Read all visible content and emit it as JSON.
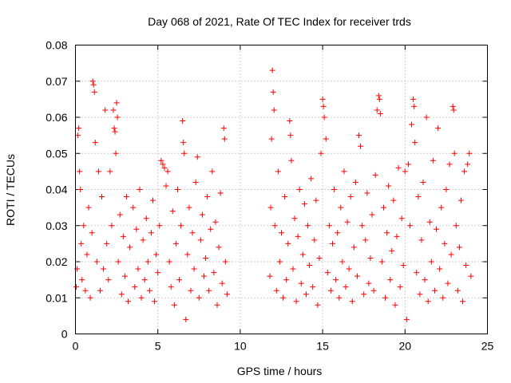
{
  "chart_data": {
    "type": "scatter",
    "title": "Day 068 of 2021, Rate Of TEC Index for receiver trds",
    "xlabel": "GPS time / hours",
    "ylabel": "ROTI / TECUs",
    "xlim": [
      0,
      25
    ],
    "ylim": [
      0,
      0.08
    ],
    "xticks": [
      0,
      5,
      10,
      15,
      20,
      25
    ],
    "xtick_labels": [
      "0",
      "5",
      "10",
      "15",
      "20",
      "25"
    ],
    "yticks": [
      0,
      0.01,
      0.02,
      0.03,
      0.04,
      0.05,
      0.06,
      0.07,
      0.08
    ],
    "ytick_labels": [
      "0",
      "0.01",
      "0.02",
      "0.03",
      "0.04",
      "0.05",
      "0.06",
      "0.07",
      "0.08"
    ],
    "grid": true,
    "marker": "+",
    "color": "#ff0000",
    "data_gap_hours": [
      9.3,
      11.7
    ],
    "series": [
      {
        "name": "ROTI",
        "points": [
          [
            0.05,
            0.013
          ],
          [
            0.1,
            0.018
          ],
          [
            0.15,
            0.055
          ],
          [
            0.2,
            0.057
          ],
          [
            0.25,
            0.045
          ],
          [
            0.3,
            0.04
          ],
          [
            0.35,
            0.025
          ],
          [
            0.4,
            0.015
          ],
          [
            0.5,
            0.03
          ],
          [
            0.6,
            0.012
          ],
          [
            0.7,
            0.022
          ],
          [
            0.8,
            0.035
          ],
          [
            0.9,
            0.01
          ],
          [
            1.0,
            0.028
          ],
          [
            1.05,
            0.07
          ],
          [
            1.1,
            0.069
          ],
          [
            1.15,
            0.067
          ],
          [
            1.2,
            0.053
          ],
          [
            1.3,
            0.02
          ],
          [
            1.4,
            0.045
          ],
          [
            1.5,
            0.012
          ],
          [
            1.6,
            0.038
          ],
          [
            1.7,
            0.018
          ],
          [
            1.8,
            0.062
          ],
          [
            1.9,
            0.025
          ],
          [
            2.0,
            0.015
          ],
          [
            2.1,
            0.045
          ],
          [
            2.2,
            0.03
          ],
          [
            2.3,
            0.062
          ],
          [
            2.35,
            0.057
          ],
          [
            2.4,
            0.056
          ],
          [
            2.45,
            0.05
          ],
          [
            2.5,
            0.064
          ],
          [
            2.55,
            0.06
          ],
          [
            2.6,
            0.02
          ],
          [
            2.7,
            0.033
          ],
          [
            2.8,
            0.011
          ],
          [
            2.9,
            0.027
          ],
          [
            3.0,
            0.016
          ],
          [
            3.1,
            0.038
          ],
          [
            3.2,
            0.009
          ],
          [
            3.3,
            0.024
          ],
          [
            3.5,
            0.035
          ],
          [
            3.6,
            0.013
          ],
          [
            3.7,
            0.029
          ],
          [
            3.8,
            0.018
          ],
          [
            3.9,
            0.04
          ],
          [
            4.0,
            0.01
          ],
          [
            4.1,
            0.026
          ],
          [
            4.2,
            0.015
          ],
          [
            4.3,
            0.032
          ],
          [
            4.4,
            0.02
          ],
          [
            4.5,
            0.012
          ],
          [
            4.6,
            0.028
          ],
          [
            4.7,
            0.037
          ],
          [
            4.8,
            0.009
          ],
          [
            4.9,
            0.022
          ],
          [
            5.0,
            0.017
          ],
          [
            5.1,
            0.03
          ],
          [
            5.2,
            0.048
          ],
          [
            5.3,
            0.047
          ],
          [
            5.4,
            0.046
          ],
          [
            5.5,
            0.041
          ],
          [
            5.6,
            0.045
          ],
          [
            5.7,
            0.02
          ],
          [
            5.8,
            0.013
          ],
          [
            5.9,
            0.034
          ],
          [
            6.0,
            0.008
          ],
          [
            6.1,
            0.025
          ],
          [
            6.2,
            0.04
          ],
          [
            6.3,
            0.015
          ],
          [
            6.4,
            0.03
          ],
          [
            6.5,
            0.059
          ],
          [
            6.55,
            0.053
          ],
          [
            6.6,
            0.05
          ],
          [
            6.7,
            0.004
          ],
          [
            6.8,
            0.022
          ],
          [
            6.9,
            0.035
          ],
          [
            7.0,
            0.012
          ],
          [
            7.1,
            0.028
          ],
          [
            7.2,
            0.018
          ],
          [
            7.3,
            0.042
          ],
          [
            7.4,
            0.049
          ],
          [
            7.5,
            0.01
          ],
          [
            7.6,
            0.026
          ],
          [
            7.7,
            0.033
          ],
          [
            7.8,
            0.016
          ],
          [
            7.9,
            0.021
          ],
          [
            8.0,
            0.038
          ],
          [
            8.1,
            0.012
          ],
          [
            8.2,
            0.029
          ],
          [
            8.3,
            0.045
          ],
          [
            8.4,
            0.017
          ],
          [
            8.5,
            0.031
          ],
          [
            8.6,
            0.008
          ],
          [
            8.7,
            0.024
          ],
          [
            8.8,
            0.039
          ],
          [
            8.9,
            0.014
          ],
          [
            9.0,
            0.057
          ],
          [
            9.05,
            0.054
          ],
          [
            9.1,
            0.02
          ],
          [
            9.2,
            0.011
          ],
          [
            11.8,
            0.016
          ],
          [
            11.85,
            0.035
          ],
          [
            11.9,
            0.054
          ],
          [
            11.95,
            0.073
          ],
          [
            12.0,
            0.067
          ],
          [
            12.05,
            0.062
          ],
          [
            12.1,
            0.03
          ],
          [
            12.2,
            0.012
          ],
          [
            12.3,
            0.045
          ],
          [
            12.4,
            0.02
          ],
          [
            12.5,
            0.028
          ],
          [
            12.6,
            0.01
          ],
          [
            12.7,
            0.038
          ],
          [
            12.8,
            0.015
          ],
          [
            12.9,
            0.025
          ],
          [
            13.0,
            0.059
          ],
          [
            13.05,
            0.055
          ],
          [
            13.1,
            0.048
          ],
          [
            13.2,
            0.018
          ],
          [
            13.3,
            0.032
          ],
          [
            13.4,
            0.009
          ],
          [
            13.5,
            0.027
          ],
          [
            13.6,
            0.04
          ],
          [
            13.7,
            0.014
          ],
          [
            13.8,
            0.022
          ],
          [
            13.9,
            0.036
          ],
          [
            14.0,
            0.011
          ],
          [
            14.1,
            0.03
          ],
          [
            14.2,
            0.019
          ],
          [
            14.3,
            0.043
          ],
          [
            14.4,
            0.013
          ],
          [
            14.5,
            0.026
          ],
          [
            14.6,
            0.037
          ],
          [
            14.7,
            0.008
          ],
          [
            14.8,
            0.021
          ],
          [
            14.9,
            0.05
          ],
          [
            15.0,
            0.065
          ],
          [
            15.05,
            0.063
          ],
          [
            15.1,
            0.06
          ],
          [
            15.2,
            0.054
          ],
          [
            15.3,
            0.017
          ],
          [
            15.4,
            0.03
          ],
          [
            15.5,
            0.012
          ],
          [
            15.6,
            0.025
          ],
          [
            15.7,
            0.04
          ],
          [
            15.8,
            0.015
          ],
          [
            15.9,
            0.028
          ],
          [
            16.0,
            0.01
          ],
          [
            16.1,
            0.035
          ],
          [
            16.2,
            0.02
          ],
          [
            16.3,
            0.045
          ],
          [
            16.4,
            0.013
          ],
          [
            16.5,
            0.031
          ],
          [
            16.6,
            0.018
          ],
          [
            16.7,
            0.038
          ],
          [
            16.8,
            0.009
          ],
          [
            16.9,
            0.024
          ],
          [
            17.0,
            0.042
          ],
          [
            17.1,
            0.016
          ],
          [
            17.2,
            0.055
          ],
          [
            17.3,
            0.052
          ],
          [
            17.4,
            0.03
          ],
          [
            17.5,
            0.011
          ],
          [
            17.6,
            0.026
          ],
          [
            17.7,
            0.039
          ],
          [
            17.8,
            0.014
          ],
          [
            17.9,
            0.021
          ],
          [
            18.0,
            0.033
          ],
          [
            18.1,
            0.012
          ],
          [
            18.2,
            0.044
          ],
          [
            18.3,
            0.062
          ],
          [
            18.4,
            0.066
          ],
          [
            18.45,
            0.065
          ],
          [
            18.5,
            0.061
          ],
          [
            18.6,
            0.02
          ],
          [
            18.7,
            0.035
          ],
          [
            18.8,
            0.01
          ],
          [
            18.9,
            0.028
          ],
          [
            19.0,
            0.041
          ],
          [
            19.1,
            0.015
          ],
          [
            19.2,
            0.023
          ],
          [
            19.3,
            0.037
          ],
          [
            19.4,
            0.008
          ],
          [
            19.5,
            0.027
          ],
          [
            19.6,
            0.046
          ],
          [
            19.7,
            0.013
          ],
          [
            19.8,
            0.032
          ],
          [
            19.9,
            0.019
          ],
          [
            20.0,
            0.045
          ],
          [
            20.1,
            0.004
          ],
          [
            20.2,
            0.047
          ],
          [
            20.3,
            0.03
          ],
          [
            20.4,
            0.058
          ],
          [
            20.5,
            0.065
          ],
          [
            20.55,
            0.063
          ],
          [
            20.6,
            0.053
          ],
          [
            20.7,
            0.017
          ],
          [
            20.8,
            0.038
          ],
          [
            20.9,
            0.011
          ],
          [
            21.0,
            0.026
          ],
          [
            21.1,
            0.042
          ],
          [
            21.2,
            0.015
          ],
          [
            21.3,
            0.06
          ],
          [
            21.4,
            0.009
          ],
          [
            21.5,
            0.031
          ],
          [
            21.6,
            0.02
          ],
          [
            21.7,
            0.048
          ],
          [
            21.8,
            0.012
          ],
          [
            21.9,
            0.029
          ],
          [
            22.0,
            0.057
          ],
          [
            22.1,
            0.018
          ],
          [
            22.2,
            0.035
          ],
          [
            22.3,
            0.01
          ],
          [
            22.4,
            0.025
          ],
          [
            22.5,
            0.04
          ],
          [
            22.6,
            0.014
          ],
          [
            22.7,
            0.047
          ],
          [
            22.8,
            0.022
          ],
          [
            22.9,
            0.063
          ],
          [
            22.95,
            0.062
          ],
          [
            23.0,
            0.05
          ],
          [
            23.1,
            0.03
          ],
          [
            23.2,
            0.012
          ],
          [
            23.3,
            0.024
          ],
          [
            23.4,
            0.037
          ],
          [
            23.5,
            0.009
          ],
          [
            23.6,
            0.045
          ],
          [
            23.7,
            0.019
          ],
          [
            23.8,
            0.047
          ],
          [
            23.9,
            0.05
          ],
          [
            24.0,
            0.016
          ]
        ]
      }
    ]
  }
}
